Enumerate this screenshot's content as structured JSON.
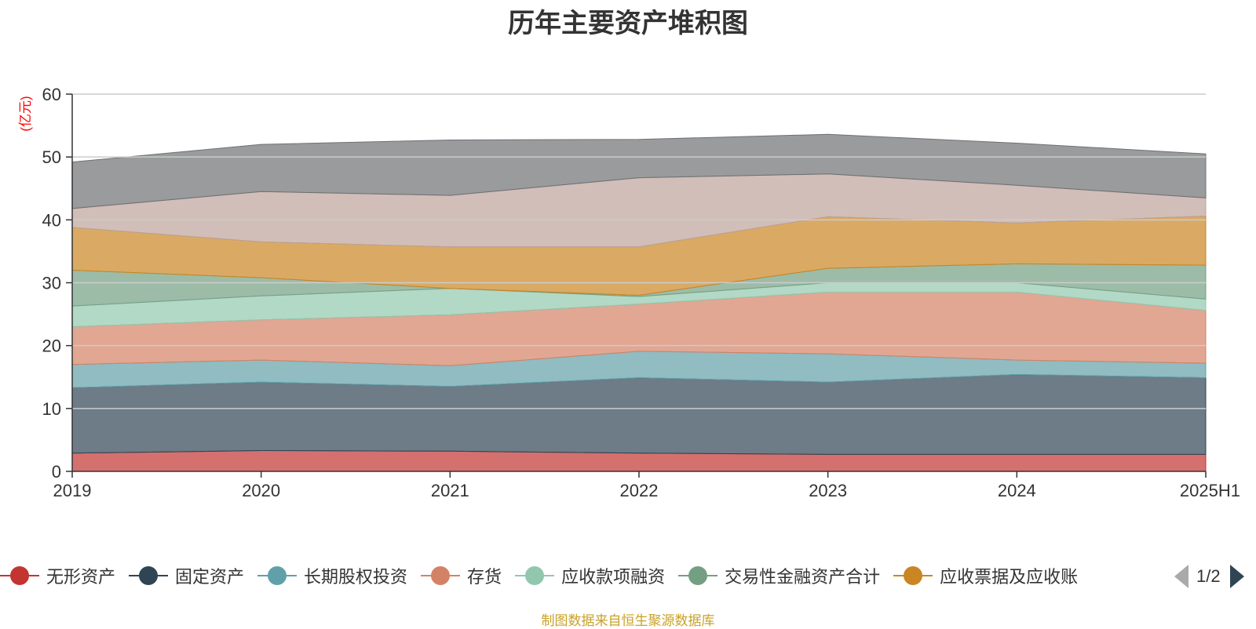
{
  "chart_data": {
    "type": "area",
    "title": "历年主要资产堆积图",
    "unit_label": "(亿元)",
    "stacked": true,
    "categories": [
      "2019",
      "2020",
      "2021",
      "2022",
      "2023",
      "2024",
      "2025H1"
    ],
    "ylim": [
      0,
      60
    ],
    "yticks": [
      0,
      10,
      20,
      30,
      40,
      50,
      60
    ],
    "grid": true,
    "legend_position": "bottom",
    "series": [
      {
        "name": "无形资产",
        "color": "#c23531",
        "values": [
          2.9,
          3.3,
          3.2,
          2.9,
          2.7,
          2.7,
          2.7
        ]
      },
      {
        "name": "固定资产",
        "color": "#2f4554",
        "values": [
          10.4,
          10.9,
          10.3,
          12.0,
          11.5,
          12.7,
          12.2
        ]
      },
      {
        "name": "长期股权投资",
        "color": "#61a0a8",
        "values": [
          3.7,
          3.5,
          3.3,
          4.2,
          4.5,
          2.3,
          2.3
        ]
      },
      {
        "name": "存货",
        "color": "#d48265",
        "values": [
          6.0,
          6.4,
          8.1,
          7.5,
          9.8,
          10.8,
          8.4
        ]
      },
      {
        "name": "应收款项融资",
        "color": "#91c7ae",
        "values": [
          3.3,
          3.8,
          4.2,
          1.2,
          1.5,
          1.5,
          1.8
        ]
      },
      {
        "name": "交易性金融资产合计",
        "color": "#749f83",
        "values": [
          5.7,
          2.9,
          0.0,
          0.2,
          2.3,
          3.0,
          5.4
        ]
      },
      {
        "name": "应收票据及应收账",
        "color": "#ca8622",
        "values": [
          6.8,
          5.7,
          6.6,
          7.7,
          8.2,
          6.5,
          7.8
        ]
      },
      {
        "name": "",
        "color": "#bda29a",
        "values": [
          3.0,
          8.0,
          8.2,
          11.0,
          6.8,
          6.0,
          2.9
        ]
      },
      {
        "name": "",
        "color": "#6e7074",
        "values": [
          7.4,
          7.5,
          8.8,
          6.1,
          6.3,
          6.7,
          7.0
        ]
      }
    ]
  },
  "legend": {
    "page_text": "1/2",
    "visible_series": [
      "无形资产",
      "固定资产",
      "长期股权投资",
      "存货",
      "应收款项融资",
      "交易性金融资产合计",
      "应收票据及应收账"
    ]
  },
  "source_note": "制图数据来自恒生聚源数据库",
  "colors": {
    "unit_label": "#ff0000",
    "source_note": "#c9a227",
    "grid": "#cccccc",
    "axis": "#333333"
  }
}
